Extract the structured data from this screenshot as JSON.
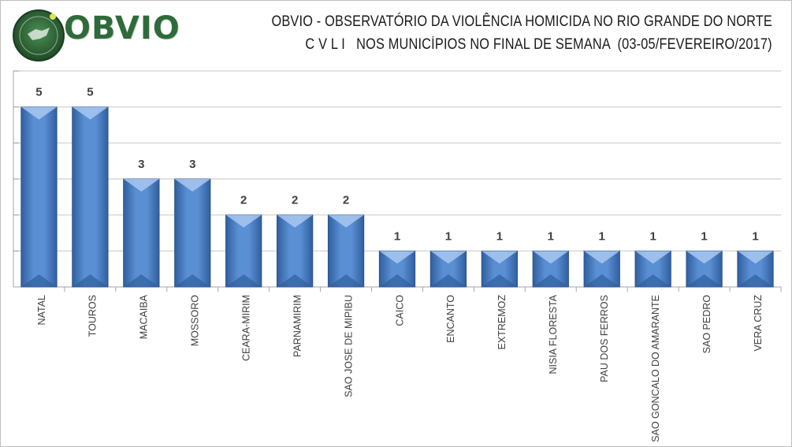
{
  "header": {
    "logo_text": "OBVIO",
    "title_line1": "OBVIO - OBSERVATÓRIO DA VIOLÊNCIA HOMICIDA NO RIO GRANDE DO NORTE",
    "title_line2": "C V L I   NOS MUNICÍPIOS NO FINAL DE SEMANA  (03-05/FEVEREIRO/2017)"
  },
  "colors": {
    "bar": "#5b8fd4",
    "bar_dark": "#2f5f9e",
    "bar_light": "#a9c8f0",
    "grid": "#d9d9d9",
    "logo_green": "#2f6b3a"
  },
  "chart_data": {
    "type": "bar",
    "categories": [
      "NATAL",
      "TOUROS",
      "MACAIBA",
      "MOSSORO",
      "CEARA-MIRIM",
      "PARNAMIRIM",
      "SAO JOSE DE MIPIBU",
      "CAICO",
      "ENCANTO",
      "EXTREMOZ",
      "NISIA FLORESTA",
      "PAU DOS FERROS",
      "SAO GONCALO DO AMARANTE",
      "SAO PEDRO",
      "VERA CRUZ"
    ],
    "values": [
      5,
      5,
      3,
      3,
      2,
      2,
      2,
      1,
      1,
      1,
      1,
      1,
      1,
      1,
      1
    ],
    "data_labels": [
      "5",
      "5",
      "3",
      "3",
      "2",
      "2",
      "2",
      "1",
      "1",
      "1",
      "1",
      "1",
      "1",
      "1",
      "1"
    ],
    "ylim": [
      0,
      6
    ],
    "y_major_step": 1,
    "grid": true,
    "legend": "none"
  }
}
